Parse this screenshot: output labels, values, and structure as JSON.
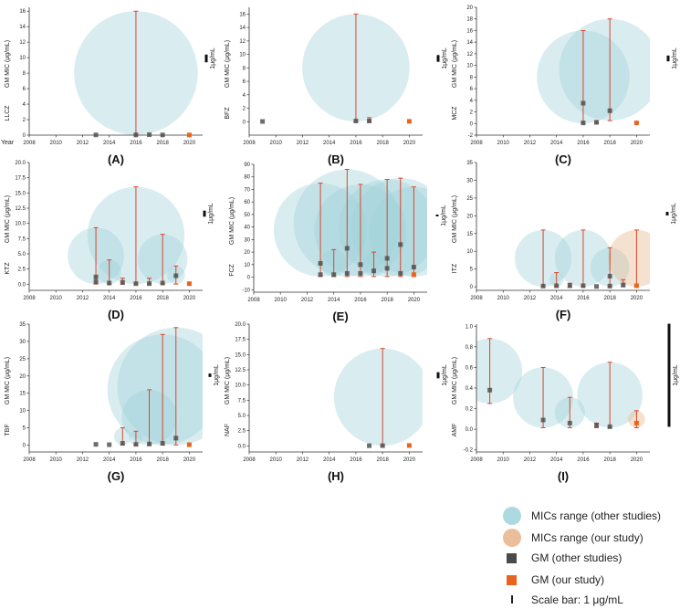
{
  "colors": {
    "bubble_other": "#9fd3d9",
    "bubble_our": "#e6b388",
    "gm_other": "#4a4a4a",
    "gm_our": "#e8641e",
    "errbar": "#d9452b",
    "axis": "#333333"
  },
  "year_axis_label": "Year",
  "legend": {
    "items": [
      {
        "key": "bubble_other",
        "label": "MICs range (other studies)"
      },
      {
        "key": "bubble_our",
        "label": "MICs range (our study)"
      },
      {
        "key": "gm_other",
        "label": "GM (other studies)"
      },
      {
        "key": "gm_our",
        "label": "GM (our study)"
      },
      {
        "key": "scale",
        "label": "Scale bar: 1 μg/mL"
      }
    ]
  },
  "chart_data": [
    {
      "type": "scatter",
      "panel": "(A)",
      "drug": "LLCZ",
      "ylabel": "GM MIC (μg/mL)",
      "xlabel": "Year",
      "xlim": [
        2008,
        2021
      ],
      "xticks": [
        2008,
        2010,
        2012,
        2014,
        2016,
        2018,
        2020
      ],
      "ylim": [
        0,
        16.5
      ],
      "yticks": [
        0,
        2,
        4,
        6,
        8,
        10,
        12,
        14,
        16
      ],
      "scale_label": "1μg/mL",
      "scale_value": 1,
      "points": [
        {
          "year": 2013,
          "gm": 0.03,
          "min": null,
          "max": null,
          "our": false
        },
        {
          "year": 2016,
          "gm": 0.03,
          "min": 0.03,
          "max": 16,
          "our": false
        },
        {
          "year": 2017,
          "gm": 0.06,
          "min": null,
          "max": null,
          "our": false
        },
        {
          "year": 2018,
          "gm": 0.03,
          "min": null,
          "max": null,
          "our": false
        },
        {
          "year": 2020,
          "gm": 0.02,
          "min": null,
          "max": null,
          "our": true
        }
      ]
    },
    {
      "type": "scatter",
      "panel": "(B)",
      "drug": "BFZ",
      "ylabel": "GM MIC (μg/mL)",
      "xlabel": "",
      "xlim": [
        2008,
        2021
      ],
      "xticks": [
        2008,
        2010,
        2012,
        2014,
        2016,
        2018,
        2020
      ],
      "ylim": [
        -2,
        17
      ],
      "yticks": [
        0,
        2,
        4,
        6,
        8,
        10,
        12,
        14,
        16
      ],
      "scale_label": "1μg/mL",
      "scale_value": 1,
      "points": [
        {
          "year": 2009,
          "gm": 0.03,
          "min": null,
          "max": null,
          "our": false
        },
        {
          "year": 2016,
          "gm": 0.1,
          "min": 0.03,
          "max": 16,
          "our": false
        },
        {
          "year": 2017,
          "gm": 0.1,
          "min": 0.03,
          "max": 0.6,
          "our": false
        },
        {
          "year": 2020,
          "gm": 0.05,
          "min": null,
          "max": null,
          "our": true
        }
      ]
    },
    {
      "type": "scatter",
      "panel": "(C)",
      "drug": "MCZ",
      "ylabel": "GM MIC (μg/mL)",
      "xlabel": "",
      "xlim": [
        2008,
        2021
      ],
      "xticks": [
        2008,
        2010,
        2012,
        2014,
        2016,
        2018,
        2020
      ],
      "ylim": [
        -2,
        20
      ],
      "yticks": [
        -2,
        0,
        2,
        4,
        6,
        8,
        10,
        12,
        14,
        16,
        18,
        20
      ],
      "scale_label": "1μg/mL",
      "scale_value": 1,
      "points": [
        {
          "year": 2016,
          "gm": 3.5,
          "min": 0.03,
          "max": 16,
          "our": false
        },
        {
          "year": 2016,
          "gm": 0.1,
          "min": null,
          "max": null,
          "our": false
        },
        {
          "year": 2017,
          "gm": 0.2,
          "min": 0.03,
          "max": 0.5,
          "our": false
        },
        {
          "year": 2018,
          "gm": 2.2,
          "min": 0.5,
          "max": 18,
          "our": false
        },
        {
          "year": 2020,
          "gm": 0.1,
          "min": null,
          "max": null,
          "our": true
        }
      ]
    },
    {
      "type": "scatter",
      "panel": "(D)",
      "drug": "KTZ",
      "ylabel": "GM MIC (μg/mL)",
      "xlabel": "",
      "xlim": [
        2008,
        2021
      ],
      "xticks": [
        2008,
        2010,
        2012,
        2014,
        2016,
        2018,
        2020
      ],
      "ylim": [
        -1,
        20
      ],
      "yticks": [
        0,
        2.5,
        5,
        7.5,
        10,
        12.5,
        15,
        17.5,
        20
      ],
      "ytick_labels": [
        "0.0",
        "2.5",
        "5.0",
        "7.5",
        "10.0",
        "12.5",
        "15.0",
        "17.5",
        "20.0"
      ],
      "scale_label": "1μg/mL",
      "scale_value": 1,
      "points": [
        {
          "year": 2013,
          "gm": 1.2,
          "min": 0.03,
          "max": 9.3,
          "our": false
        },
        {
          "year": 2013,
          "gm": 0.4,
          "min": null,
          "max": null,
          "our": false
        },
        {
          "year": 2014,
          "gm": 0.2,
          "min": 0.03,
          "max": 4,
          "our": false
        },
        {
          "year": 2015,
          "gm": 0.3,
          "min": 0.03,
          "max": 1,
          "our": false
        },
        {
          "year": 2016,
          "gm": 0.1,
          "min": 0.03,
          "max": 16,
          "our": false
        },
        {
          "year": 2017,
          "gm": 0.1,
          "min": 0.03,
          "max": 1,
          "our": false
        },
        {
          "year": 2018,
          "gm": 0.2,
          "min": 0.03,
          "max": 8.2,
          "our": false
        },
        {
          "year": 2019,
          "gm": 1.4,
          "min": 0.03,
          "max": 3,
          "our": false
        },
        {
          "year": 2020,
          "gm": 0.1,
          "min": null,
          "max": null,
          "our": true
        }
      ]
    },
    {
      "type": "scatter",
      "panel": "(E)",
      "drug": "FCZ",
      "ylabel": "GM MIC (μg/mL)",
      "xlabel": "",
      "xlim": [
        2008,
        2021
      ],
      "xticks": [
        2008,
        2010,
        2012,
        2014,
        2016,
        2018,
        2020
      ],
      "ylim": [
        -12,
        90
      ],
      "yticks": [
        -10,
        0,
        10,
        20,
        30,
        40,
        50,
        60,
        70,
        80,
        90
      ],
      "scale_label": "1μg/mL",
      "scale_value": 1,
      "points": [
        {
          "year": 2013,
          "gm": 11,
          "min": 0.5,
          "max": 75,
          "our": false
        },
        {
          "year": 2013,
          "gm": 2,
          "min": null,
          "max": null,
          "our": false
        },
        {
          "year": 2014,
          "gm": 2,
          "min": 0.5,
          "max": 22,
          "our": false
        },
        {
          "year": 2015,
          "gm": 23,
          "min": 0.5,
          "max": 86,
          "our": false
        },
        {
          "year": 2015,
          "gm": 3,
          "min": null,
          "max": null,
          "our": false
        },
        {
          "year": 2016,
          "gm": 10,
          "min": 0.5,
          "max": 74,
          "our": false
        },
        {
          "year": 2016,
          "gm": 3,
          "min": null,
          "max": null,
          "our": false
        },
        {
          "year": 2017,
          "gm": 5,
          "min": 0.5,
          "max": 20,
          "our": false
        },
        {
          "year": 2018,
          "gm": 15,
          "min": 0.5,
          "max": 78,
          "our": false
        },
        {
          "year": 2018,
          "gm": 7,
          "min": null,
          "max": null,
          "our": false
        },
        {
          "year": 2019,
          "gm": 26,
          "min": 0.5,
          "max": 79,
          "our": false
        },
        {
          "year": 2019,
          "gm": 3,
          "min": null,
          "max": null,
          "our": false
        },
        {
          "year": 2020,
          "gm": 8,
          "min": 0.5,
          "max": 72,
          "our": false
        },
        {
          "year": 2020,
          "gm": 2,
          "min": null,
          "max": null,
          "our": true
        }
      ]
    },
    {
      "type": "scatter",
      "panel": "(F)",
      "drug": "ITZ",
      "ylabel": "GM MIC (μg/mL)",
      "xlabel": "",
      "xlim": [
        2008,
        2021
      ],
      "xticks": [
        2008,
        2010,
        2012,
        2014,
        2016,
        2018,
        2020
      ],
      "ylim": [
        -1,
        35
      ],
      "yticks": [
        0,
        5,
        10,
        15,
        20,
        25,
        30,
        35
      ],
      "scale_label": "1μg/mL",
      "scale_value": 1,
      "points": [
        {
          "year": 2013,
          "gm": 0.2,
          "min": 0.03,
          "max": 16,
          "our": false
        },
        {
          "year": 2014,
          "gm": 0.3,
          "min": 0.03,
          "max": 4,
          "our": false
        },
        {
          "year": 2015,
          "gm": 0.3,
          "min": 0.03,
          "max": 1,
          "our": false
        },
        {
          "year": 2016,
          "gm": 0.3,
          "min": 0.03,
          "max": 16,
          "our": false
        },
        {
          "year": 2017,
          "gm": 0.1,
          "min": null,
          "max": null,
          "our": false
        },
        {
          "year": 2018,
          "gm": 3,
          "min": 0.03,
          "max": 11,
          "our": false
        },
        {
          "year": 2018,
          "gm": 0.2,
          "min": null,
          "max": null,
          "our": false
        },
        {
          "year": 2019,
          "gm": 0.5,
          "min": 0.03,
          "max": 2,
          "our": false
        },
        {
          "year": 2020,
          "gm": 0.3,
          "min": 0.03,
          "max": 16,
          "our": true
        }
      ]
    },
    {
      "type": "scatter",
      "panel": "(G)",
      "drug": "TBF",
      "ylabel": "GM MIC (μg/mL)",
      "xlabel": "",
      "xlim": [
        2008,
        2021
      ],
      "xticks": [
        2008,
        2010,
        2012,
        2014,
        2016,
        2018,
        2020
      ],
      "ylim": [
        -2,
        35
      ],
      "yticks": [
        0,
        5,
        10,
        15,
        20,
        25,
        30,
        35
      ],
      "scale_label": "1μg/mL",
      "scale_value": 1,
      "points": [
        {
          "year": 2013,
          "gm": 0.2,
          "min": null,
          "max": null,
          "our": false
        },
        {
          "year": 2014,
          "gm": 0.1,
          "min": null,
          "max": null,
          "our": false
        },
        {
          "year": 2015,
          "gm": 0.5,
          "min": 0.03,
          "max": 5,
          "our": false
        },
        {
          "year": 2016,
          "gm": 0.2,
          "min": 0.03,
          "max": 4,
          "our": false
        },
        {
          "year": 2017,
          "gm": 0.3,
          "min": 0.03,
          "max": 16,
          "our": false
        },
        {
          "year": 2018,
          "gm": 0.5,
          "min": 0.03,
          "max": 32,
          "our": false
        },
        {
          "year": 2019,
          "gm": 2,
          "min": 0.03,
          "max": 34,
          "our": false
        },
        {
          "year": 2020,
          "gm": 0.1,
          "min": null,
          "max": null,
          "our": true
        }
      ]
    },
    {
      "type": "scatter",
      "panel": "(H)",
      "drug": "NAF",
      "ylabel": "GM MIC (μg/mL)",
      "xlabel": "",
      "xlim": [
        2008,
        2021
      ],
      "xticks": [
        2008,
        2010,
        2012,
        2014,
        2016,
        2018,
        2020
      ],
      "ylim": [
        -1,
        20
      ],
      "yticks": [
        0,
        2.5,
        5,
        7.5,
        10,
        12.5,
        15,
        17.5,
        20
      ],
      "ytick_labels": [
        "0.0",
        "2.5",
        "5.0",
        "7.5",
        "10.0",
        "12.5",
        "15.0",
        "17.5",
        "20.0"
      ],
      "scale_label": "1μg/mL",
      "scale_value": 1,
      "points": [
        {
          "year": 2017,
          "gm": 0.03,
          "min": null,
          "max": null,
          "our": false
        },
        {
          "year": 2018,
          "gm": 0.03,
          "min": 0.03,
          "max": 16,
          "our": false
        },
        {
          "year": 2020,
          "gm": 0.06,
          "min": null,
          "max": null,
          "our": true
        }
      ]
    },
    {
      "type": "scatter",
      "panel": "(I)",
      "drug": "AMF",
      "ylabel": "GM MIC (μg/mL)",
      "xlabel": "",
      "xlim": [
        2008,
        2021
      ],
      "xticks": [
        2008,
        2010,
        2012,
        2014,
        2016,
        2018,
        2020
      ],
      "ylim": [
        -0.22,
        1.02
      ],
      "yticks": [
        -0.2,
        0,
        0.2,
        0.4,
        0.6,
        0.8,
        1.0
      ],
      "ytick_labels": [
        "-0.2",
        "0.0",
        "0.2",
        "0.4",
        "0.6",
        "0.8",
        "1.0"
      ],
      "scale_label": "1μg/mL",
      "scale_value": 1,
      "points": [
        {
          "year": 2009,
          "gm": 0.38,
          "min": 0.25,
          "max": 0.88,
          "our": false
        },
        {
          "year": 2013,
          "gm": 0.09,
          "min": 0.015,
          "max": 0.6,
          "our": false
        },
        {
          "year": 2015,
          "gm": 0.06,
          "min": 0.015,
          "max": 0.31,
          "our": false
        },
        {
          "year": 2017,
          "gm": 0.04,
          "min": 0.015,
          "max": 0.06,
          "our": false
        },
        {
          "year": 2018,
          "gm": 0.025,
          "min": 0.015,
          "max": 0.65,
          "our": false
        },
        {
          "year": 2020,
          "gm": 0.06,
          "min": 0.015,
          "max": 0.18,
          "our": true
        }
      ]
    }
  ]
}
